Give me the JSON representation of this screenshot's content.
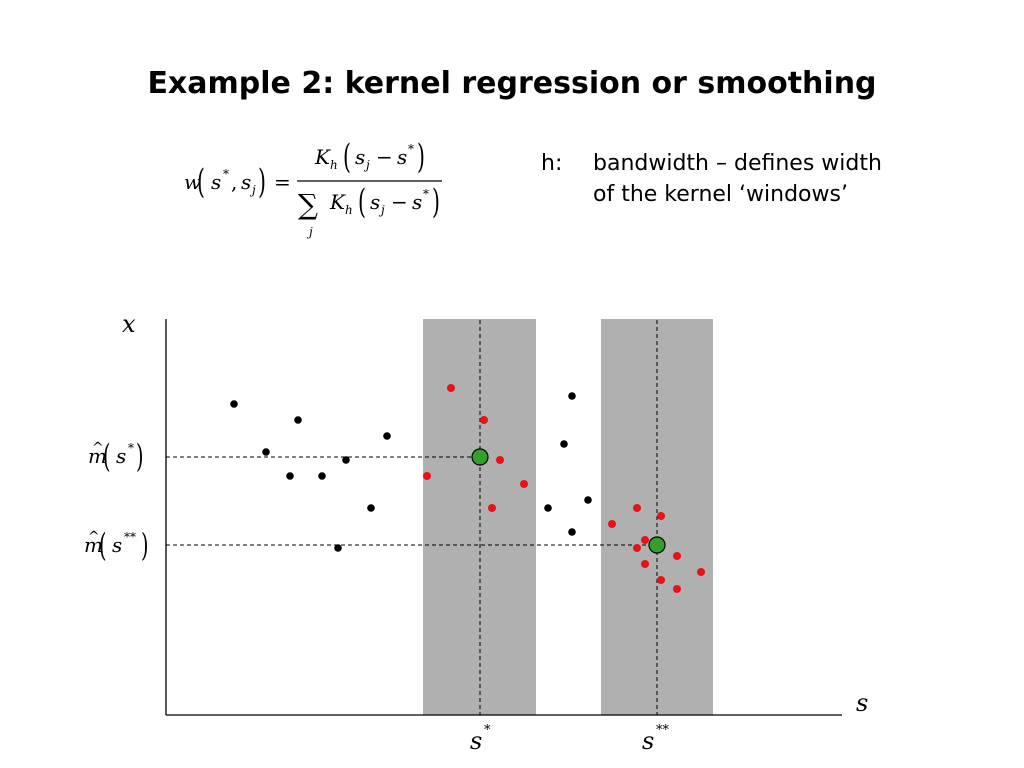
{
  "title": "Example 2: kernel regression or smoothing",
  "bandwidth_note": {
    "symbol": "h:",
    "line1": "bandwidth – defines width",
    "line2": "of the kernel ‘windows’"
  },
  "formula": {
    "w": "w",
    "s": "s",
    "star": "*",
    "j": "j",
    "comma": ",",
    "equals": "=",
    "K": "K",
    "h": "h",
    "minus": "−",
    "sum": "∑"
  },
  "axes": {
    "y_label": "x",
    "x_label": "s",
    "tick_s_star": "s",
    "tick_s_star_sup": "*",
    "tick_s_starstar": "s",
    "tick_s_starstar_sup": "**",
    "m_hat": "m",
    "hat": "^",
    "m_sup1": "*",
    "m_sup2": "**"
  },
  "colors": {
    "background_points": "#000000",
    "kernel_points": "#e8121a",
    "estimate": "#33a02c",
    "window": "#b0b0b0"
  }
}
